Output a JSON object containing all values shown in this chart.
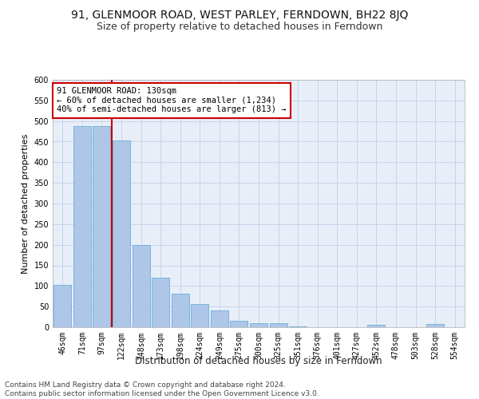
{
  "title": "91, GLENMOOR ROAD, WEST PARLEY, FERNDOWN, BH22 8JQ",
  "subtitle": "Size of property relative to detached houses in Ferndown",
  "xlabel": "Distribution of detached houses by size in Ferndown",
  "ylabel": "Number of detached properties",
  "categories": [
    "46sqm",
    "71sqm",
    "97sqm",
    "122sqm",
    "148sqm",
    "173sqm",
    "198sqm",
    "224sqm",
    "249sqm",
    "275sqm",
    "300sqm",
    "325sqm",
    "351sqm",
    "376sqm",
    "401sqm",
    "427sqm",
    "452sqm",
    "478sqm",
    "503sqm",
    "528sqm",
    "554sqm"
  ],
  "values": [
    103,
    487,
    487,
    452,
    200,
    120,
    82,
    57,
    41,
    15,
    10,
    10,
    2,
    0,
    0,
    0,
    5,
    0,
    0,
    7,
    0
  ],
  "bar_color": "#aec6e8",
  "bar_edge_color": "#6baed6",
  "vline_index": 3,
  "annotation_line1": "91 GLENMOOR ROAD: 130sqm",
  "annotation_line2": "← 60% of detached houses are smaller (1,234)",
  "annotation_line3": "40% of semi-detached houses are larger (813) →",
  "annotation_box_color": "#ffffff",
  "annotation_box_edge_color": "#cc0000",
  "vline_color": "#cc0000",
  "grid_color": "#c8d4e8",
  "bg_color": "#e8eef8",
  "ylim": [
    0,
    600
  ],
  "yticks": [
    0,
    50,
    100,
    150,
    200,
    250,
    300,
    350,
    400,
    450,
    500,
    550,
    600
  ],
  "footer": "Contains HM Land Registry data © Crown copyright and database right 2024.\nContains public sector information licensed under the Open Government Licence v3.0.",
  "title_fontsize": 10,
  "subtitle_fontsize": 9,
  "xlabel_fontsize": 8.5,
  "ylabel_fontsize": 8,
  "tick_fontsize": 7,
  "annotation_fontsize": 7.5,
  "footer_fontsize": 6.5
}
